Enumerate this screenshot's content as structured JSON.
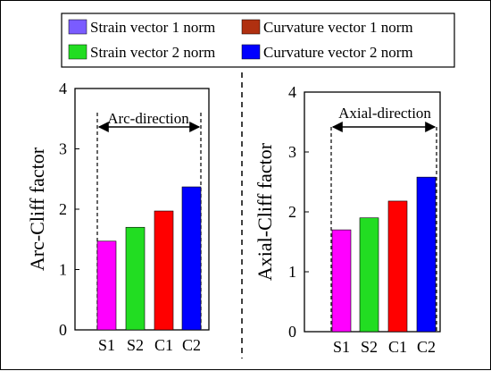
{
  "colors": {
    "strain_1": "#ff00ff",
    "strain_2": "#22dd22",
    "curvature_1": "#ff0000",
    "curvature_2": "#0000ff",
    "strain_1_legend": "#7a5cff",
    "curvature_1_legend": "#b03010"
  },
  "legend": {
    "entries": [
      {
        "label": "Strain vector 1 norm",
        "color_key": "strain_1_legend"
      },
      {
        "label": "Curvature vector 1 norm",
        "color_key": "curvature_1_legend"
      },
      {
        "label": "Strain vector 2 norm",
        "color_key": "strain_2"
      },
      {
        "label": "Curvature vector 2 norm",
        "color_key": "curvature_2"
      }
    ]
  },
  "chart_data": [
    {
      "type": "bar",
      "categories": [
        "S1",
        "S2",
        "C1",
        "C2"
      ],
      "values": [
        1.47,
        1.7,
        1.97,
        2.37
      ],
      "bar_colors": [
        "strain_1",
        "strain_2",
        "curvature_1",
        "curvature_2"
      ],
      "ylabel": "Arc-Cliff factor",
      "ylim": [
        0,
        4
      ],
      "yticks": [
        0,
        1,
        2,
        3,
        4
      ],
      "annotation": "Arc-direction",
      "grid": false
    },
    {
      "type": "bar",
      "categories": [
        "S1",
        "S2",
        "C1",
        "C2"
      ],
      "values": [
        1.7,
        1.9,
        2.18,
        2.58
      ],
      "bar_colors": [
        "strain_1",
        "strain_2",
        "curvature_1",
        "curvature_2"
      ],
      "ylabel": "Axial-Cliff factor",
      "ylim": [
        0,
        4
      ],
      "yticks": [
        0,
        1,
        2,
        3,
        4
      ],
      "annotation": "Axial-direction",
      "grid": false
    }
  ]
}
